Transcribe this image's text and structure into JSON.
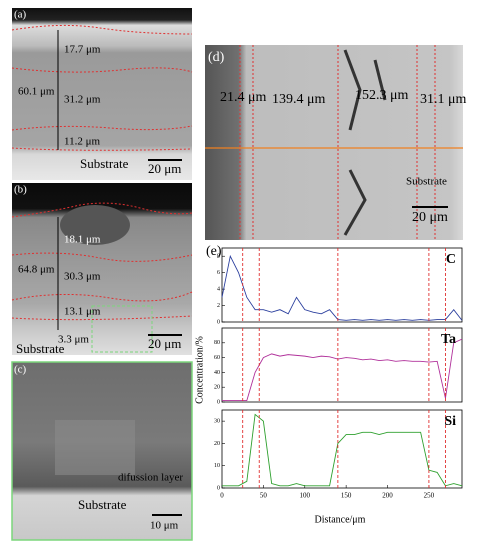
{
  "panels": {
    "a": {
      "label": "(a)",
      "t1": "17.7 μm",
      "total": "60.1 μm",
      "t2": "31.2 μm",
      "t3": "11.2 μm",
      "substrate": "Substrate",
      "scale": "20 μm"
    },
    "b": {
      "label": "(b)",
      "t1": "18.1 μm",
      "total": "64.8 μm",
      "t2": "30.3 μm",
      "t3": "13.1 μm",
      "t4": "3.3 μm",
      "substrate": "Substrate",
      "scale": "20 μm"
    },
    "c": {
      "label": "(c)",
      "layer": "difussion layer",
      "substrate": "Substrate",
      "scale": "10 μm"
    },
    "d": {
      "label": "(d)",
      "t1": "21.4 μm",
      "t2": "139.4 μm",
      "t3": "152.3 μm",
      "t4": "31.1 μm",
      "substrate": "Substrate",
      "scale": "20 μm"
    },
    "e": {
      "label": "(e)",
      "ylabel": "Concentration/%",
      "xlabel": "Distance/μm"
    }
  },
  "chart_data": [
    {
      "type": "line",
      "title": "C",
      "x": [
        0,
        10,
        20,
        30,
        40,
        50,
        60,
        70,
        80,
        90,
        100,
        110,
        120,
        130,
        140,
        150,
        160,
        170,
        180,
        190,
        200,
        210,
        220,
        230,
        240,
        250,
        260,
        270,
        280,
        290
      ],
      "series": [
        {
          "name": "C",
          "color": "#2b3f9e",
          "values": [
            3,
            8,
            6,
            3,
            1.5,
            1.5,
            1.2,
            1.5,
            1,
            3,
            1.5,
            1.2,
            1,
            1.5,
            0.3,
            0.2,
            0.3,
            0.2,
            0.3,
            0.2,
            0.3,
            0.2,
            0.3,
            0.2,
            0.3,
            0.2,
            0.3,
            0.3,
            1.5,
            0.2
          ]
        }
      ],
      "xlim": [
        0,
        290
      ],
      "ylim": [
        0,
        9
      ],
      "yticks": [
        0,
        2,
        4,
        6,
        8
      ],
      "reference_lines": [
        25,
        45,
        140,
        250,
        270
      ]
    },
    {
      "type": "line",
      "title": "Ta",
      "x": [
        0,
        10,
        20,
        30,
        40,
        50,
        60,
        70,
        80,
        90,
        100,
        110,
        120,
        130,
        140,
        150,
        160,
        170,
        180,
        190,
        200,
        210,
        220,
        230,
        240,
        250,
        260,
        270,
        280,
        290
      ],
      "series": [
        {
          "name": "Ta",
          "color": "#b0309a",
          "values": [
            2,
            2,
            2,
            2,
            40,
            60,
            65,
            62,
            64,
            63,
            62,
            60,
            62,
            61,
            58,
            60,
            59,
            57,
            58,
            56,
            57,
            55,
            56,
            55,
            55,
            54,
            55,
            5,
            80,
            85
          ]
        }
      ],
      "xlim": [
        0,
        290
      ],
      "ylim": [
        0,
        100
      ],
      "yticks": [
        0,
        20,
        40,
        60,
        80
      ],
      "reference_lines": [
        25,
        45,
        140,
        250,
        270
      ]
    },
    {
      "type": "line",
      "title": "Si",
      "x": [
        0,
        10,
        20,
        30,
        40,
        50,
        60,
        70,
        80,
        90,
        100,
        110,
        120,
        130,
        140,
        150,
        160,
        170,
        180,
        190,
        200,
        210,
        220,
        230,
        240,
        250,
        260,
        270,
        280,
        290
      ],
      "series": [
        {
          "name": "Si",
          "color": "#2ea02e",
          "values": [
            1,
            1,
            1,
            3,
            33,
            30,
            2,
            1,
            1,
            2,
            1,
            1,
            1,
            1,
            20,
            24,
            24,
            25,
            25,
            24,
            25,
            25,
            25,
            25,
            25,
            8,
            7,
            1,
            2,
            1
          ]
        }
      ],
      "xlim": [
        0,
        290
      ],
      "ylim": [
        0,
        35
      ],
      "yticks": [
        0,
        10,
        20,
        30
      ],
      "xticks": [
        0,
        50,
        100,
        150,
        200,
        250
      ],
      "reference_lines": [
        25,
        45,
        140,
        250,
        270
      ]
    }
  ]
}
